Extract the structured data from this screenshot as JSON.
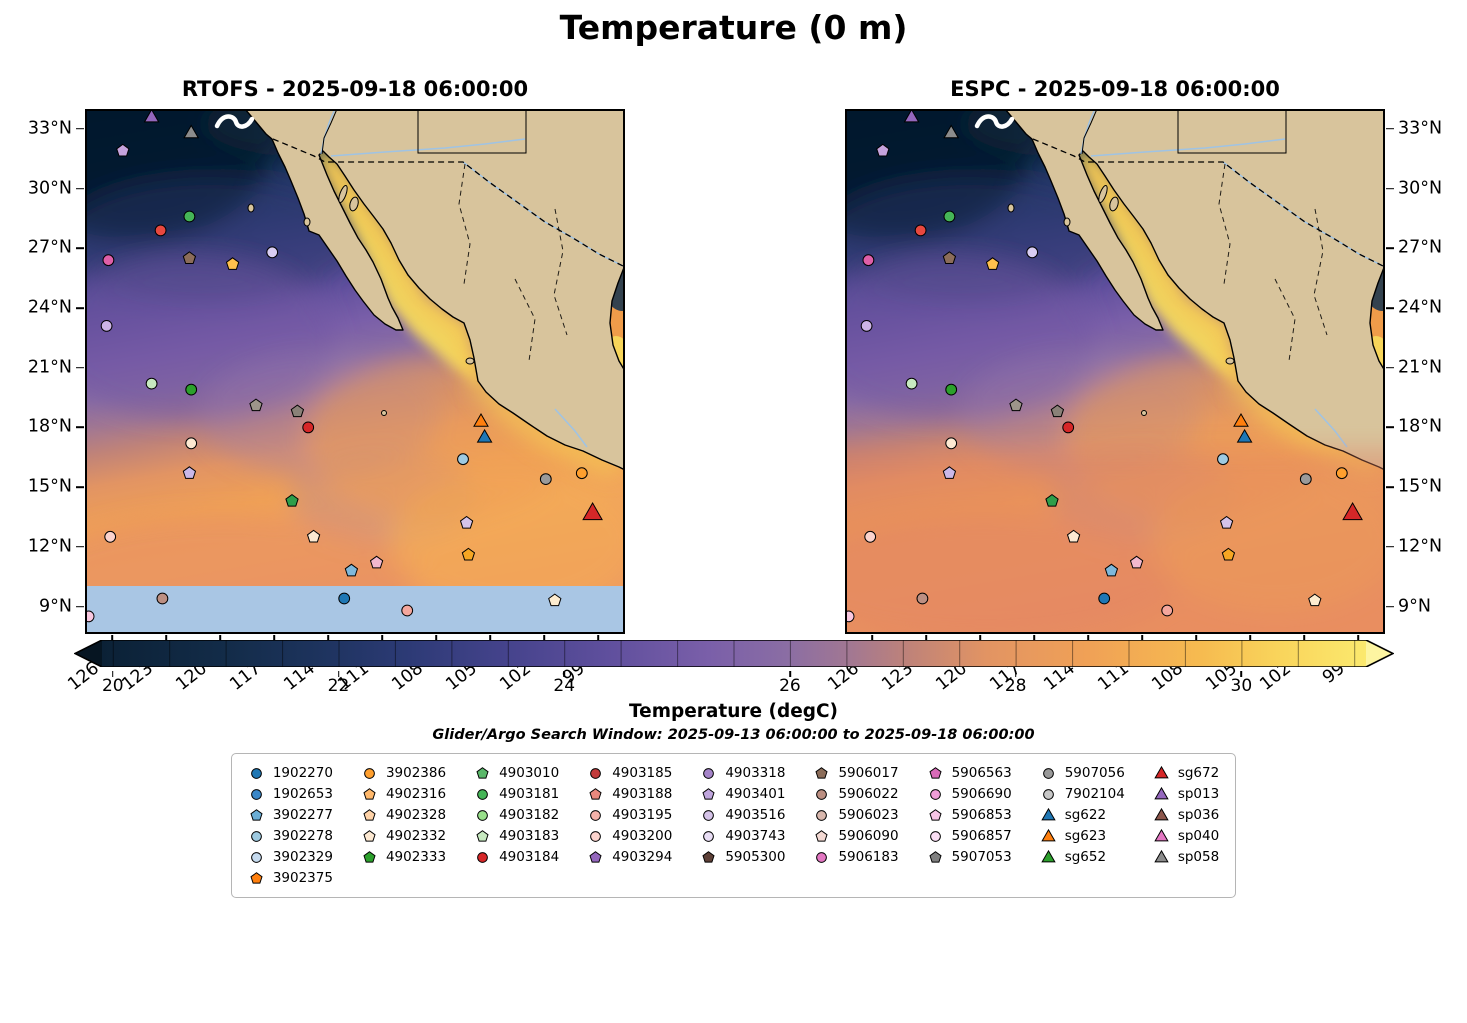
{
  "title": "Temperature (0 m)",
  "subtitle": "Glider/Argo Search Window: 2025-09-13 06:00:00 to 2025-09-18 06:00:00",
  "panels": [
    {
      "id": "rtofs",
      "title": "RTOFS - 2025-09-18 06:00:00",
      "y_axis_side": "left",
      "no_data_band": true,
      "warm_bottom_tint": false
    },
    {
      "id": "espc",
      "title": "ESPC - 2025-09-18 06:00:00",
      "y_axis_side": "right",
      "no_data_band": false,
      "warm_bottom_tint": true
    }
  ],
  "axes": {
    "lat_tick_labels": [
      "33°N",
      "30°N",
      "27°N",
      "24°N",
      "21°N",
      "18°N",
      "15°N",
      "12°N",
      "9°N"
    ],
    "lat_tick_values": [
      33,
      30,
      27,
      24,
      21,
      18,
      15,
      12,
      9
    ],
    "lon_tick_labels": [
      "126°W",
      "123°W",
      "120°W",
      "117°W",
      "114°W",
      "111°W",
      "108°W",
      "105°W",
      "102°W",
      "99°W"
    ],
    "lon_tick_values": [
      -126,
      -123,
      -120,
      -117,
      -114,
      -111,
      -108,
      -105,
      -102,
      -99
    ]
  },
  "colorbar": {
    "label": "Temperature (degC)",
    "ticks": [
      20,
      22,
      24,
      26,
      28,
      30
    ],
    "min": 19.9,
    "max": 31.1,
    "extend_min_color": "#061522",
    "extend_max_color": "#fdf5a1",
    "stops": [
      [
        0,
        "#0b2136"
      ],
      [
        0.1,
        "#132c49"
      ],
      [
        0.17,
        "#1d335d"
      ],
      [
        0.24,
        "#2c3a75"
      ],
      [
        0.32,
        "#45438c"
      ],
      [
        0.4,
        "#5f4f9d"
      ],
      [
        0.48,
        "#7a5fa9"
      ],
      [
        0.54,
        "#8a6da4"
      ],
      [
        0.59,
        "#a17793"
      ],
      [
        0.64,
        "#c08378"
      ],
      [
        0.7,
        "#e29463"
      ],
      [
        0.78,
        "#f0a156"
      ],
      [
        0.87,
        "#f6bb50"
      ],
      [
        0.93,
        "#f9d45b"
      ],
      [
        1,
        "#fbe96e"
      ]
    ]
  },
  "colors": {
    "land": "#d8c49c",
    "coastline": "#000000",
    "no_data_band": "#a9c6e4",
    "espc_warm_tint": "#e07f63",
    "river": "#9fc3e4"
  },
  "legend": {
    "columns": [
      [
        {
          "label": "1902270",
          "shape": "circle",
          "color": "#1f77b4"
        },
        {
          "label": "1902653",
          "shape": "circle",
          "color": "#3a87c8"
        },
        {
          "label": "3902277",
          "shape": "pentagon",
          "color": "#6baed6"
        },
        {
          "label": "3902278",
          "shape": "circle",
          "color": "#9ecae1"
        },
        {
          "label": "3902329",
          "shape": "circle",
          "color": "#c6dbef"
        },
        {
          "label": "3902375",
          "shape": "pentagon",
          "color": "#ff7f0e"
        }
      ],
      [
        {
          "label": "3902386",
          "shape": "circle",
          "color": "#ff9f2e"
        },
        {
          "label": "4902316",
          "shape": "pentagon",
          "color": "#ffb86b"
        },
        {
          "label": "4902328",
          "shape": "pentagon",
          "color": "#ffd3a8"
        },
        {
          "label": "4902332",
          "shape": "pentagon",
          "color": "#fde9d2"
        },
        {
          "label": "4902333",
          "shape": "pentagon",
          "color": "#2ca02c"
        }
      ],
      [
        {
          "label": "4903010",
          "shape": "pentagon",
          "color": "#5ab769"
        },
        {
          "label": "4903181",
          "shape": "circle",
          "color": "#45b557"
        },
        {
          "label": "4903182",
          "shape": "circle",
          "color": "#98df8a"
        },
        {
          "label": "4903183",
          "shape": "pentagon",
          "color": "#c7e9c0"
        },
        {
          "label": "4903184",
          "shape": "circle",
          "color": "#d62728"
        }
      ],
      [
        {
          "label": "4903185",
          "shape": "circle",
          "color": "#c23b3b"
        },
        {
          "label": "4903188",
          "shape": "pentagon",
          "color": "#e9897e"
        },
        {
          "label": "4903195",
          "shape": "circle",
          "color": "#f4b2aa"
        },
        {
          "label": "4903200",
          "shape": "circle",
          "color": "#fbd3cd"
        },
        {
          "label": "4903294",
          "shape": "pentagon",
          "color": "#9467bd"
        }
      ],
      [
        {
          "label": "4903318",
          "shape": "circle",
          "color": "#a584c9"
        },
        {
          "label": "4903401",
          "shape": "pentagon",
          "color": "#c0a6dd"
        },
        {
          "label": "4903516",
          "shape": "circle",
          "color": "#d5c3e8"
        },
        {
          "label": "4903743",
          "shape": "circle",
          "color": "#e9def5"
        },
        {
          "label": "5905300",
          "shape": "pentagon",
          "color": "#5d4037"
        }
      ],
      [
        {
          "label": "5906017",
          "shape": "pentagon",
          "color": "#8c6d5a"
        },
        {
          "label": "5906022",
          "shape": "circle",
          "color": "#bc8f82"
        },
        {
          "label": "5906023",
          "shape": "circle",
          "color": "#d9b8ae"
        },
        {
          "label": "5906090",
          "shape": "pentagon",
          "color": "#f3d9d3"
        },
        {
          "label": "5906183",
          "shape": "circle",
          "color": "#e377c2"
        }
      ],
      [
        {
          "label": "5906563",
          "shape": "pentagon",
          "color": "#d96bb8"
        },
        {
          "label": "5906690",
          "shape": "circle",
          "color": "#ef9ed8"
        },
        {
          "label": "5906853",
          "shape": "pentagon",
          "color": "#f7c6e6"
        },
        {
          "label": "5906857",
          "shape": "circle",
          "color": "#fadef4"
        },
        {
          "label": "5907053",
          "shape": "pentagon",
          "color": "#7f7f7f"
        }
      ],
      [
        {
          "label": "5907056",
          "shape": "circle",
          "color": "#9a9a9a"
        },
        {
          "label": "7902104",
          "shape": "circle",
          "color": "#c7c7c7"
        },
        {
          "label": "sg622",
          "shape": "triangle",
          "color": "#1f77b4"
        },
        {
          "label": "sg623",
          "shape": "triangle",
          "color": "#ff7f0e"
        },
        {
          "label": "sg652",
          "shape": "triangle",
          "color": "#2ca02c"
        }
      ],
      [
        {
          "label": "sg672",
          "shape": "triangle",
          "color": "#d62728"
        },
        {
          "label": "sp013",
          "shape": "triangle",
          "color": "#9467bd"
        },
        {
          "label": "sp036",
          "shape": "triangle",
          "color": "#8c564b"
        },
        {
          "label": "sp040",
          "shape": "triangle",
          "color": "#e377c2"
        },
        {
          "label": "sp058",
          "shape": "triangle",
          "color": "#8c8c8c"
        }
      ]
    ]
  },
  "chart_data": {
    "type": "heatmap",
    "variable": "Temperature",
    "units": "degC",
    "depth": "0 m",
    "panels": [
      {
        "model": "RTOFS",
        "valid_time": "2025-09-18 06:00:00"
      },
      {
        "model": "ESPC",
        "valid_time": "2025-09-18 06:00:00"
      }
    ],
    "region": "Eastern Pacific off Baja California and mainland Mexico, including Gulf of California",
    "lon_range": [
      -127.5,
      -97.5
    ],
    "lat_range": [
      7.6,
      34.0
    ],
    "colorbar_ticks": [
      20,
      22,
      24,
      26,
      28,
      30
    ],
    "colorbar_range_approx": [
      19.9,
      31.1
    ],
    "search_window": "2025-09-13 06:00:00 to 2025-09-18 06:00:00",
    "platforms": [
      {
        "shape": "triangle",
        "color": "#9467bd",
        "lon": -123.8,
        "lat": 33.6
      },
      {
        "shape": "triangle",
        "color": "#8c8c8c",
        "lon": -121.6,
        "lat": 32.8
      },
      {
        "shape": "pentagon",
        "color": "#c5a3dd",
        "lon": -125.4,
        "lat": 31.9
      },
      {
        "shape": "circle",
        "color": "#45b557",
        "lon": -121.7,
        "lat": 28.6
      },
      {
        "shape": "circle",
        "color": "#e8483f",
        "lon": -123.3,
        "lat": 27.9
      },
      {
        "shape": "circle",
        "color": "#e05fa8",
        "lon": -126.2,
        "lat": 26.4
      },
      {
        "shape": "pentagon",
        "color": "#8c6d5a",
        "lon": -121.7,
        "lat": 26.5
      },
      {
        "shape": "pentagon",
        "color": "#ffc04d",
        "lon": -119.3,
        "lat": 26.2
      },
      {
        "shape": "circle",
        "color": "#d9cdf2",
        "lon": -117.1,
        "lat": 26.8
      },
      {
        "shape": "circle",
        "color": "#cdb4e6",
        "lon": -126.3,
        "lat": 23.1
      },
      {
        "shape": "circle",
        "color": "#c7e9c0",
        "lon": -123.8,
        "lat": 20.2
      },
      {
        "shape": "circle",
        "color": "#2ca02c",
        "lon": -121.6,
        "lat": 19.9
      },
      {
        "shape": "pentagon",
        "color": "#9e958a",
        "lon": -118.0,
        "lat": 19.1
      },
      {
        "shape": "pentagon",
        "color": "#8a8178",
        "lon": -115.7,
        "lat": 18.8
      },
      {
        "shape": "circle",
        "color": "#d62728",
        "lon": -115.1,
        "lat": 18.0
      },
      {
        "shape": "circle",
        "color": "#fde9d2",
        "lon": -121.6,
        "lat": 17.2
      },
      {
        "shape": "pentagon",
        "color": "#cbb8e8",
        "lon": -121.7,
        "lat": 15.7
      },
      {
        "shape": "circle",
        "color": "#9ecae1",
        "lon": -106.5,
        "lat": 16.4
      },
      {
        "shape": "triangle",
        "color": "#ff7f0e",
        "lon": -105.5,
        "lat": 18.3
      },
      {
        "shape": "triangle",
        "color": "#1f77b4",
        "lon": -105.3,
        "lat": 17.5
      },
      {
        "shape": "pentagon",
        "color": "#2e9e4a",
        "lon": -116.0,
        "lat": 14.3
      },
      {
        "shape": "circle",
        "color": "#fbd3cd",
        "lon": -126.1,
        "lat": 12.5
      },
      {
        "shape": "pentagon",
        "color": "#d5c3e8",
        "lon": -106.3,
        "lat": 13.2
      },
      {
        "shape": "circle",
        "color": "#ff9f2e",
        "lon": -99.9,
        "lat": 15.7
      },
      {
        "shape": "circle",
        "color": "#9a9a9a",
        "lon": -101.9,
        "lat": 15.4
      },
      {
        "shape": "triangle",
        "color": "#d62728",
        "lon": -99.3,
        "lat": 13.7,
        "size": 1.35
      },
      {
        "shape": "pentagon",
        "color": "#fde9d2",
        "lon": -114.8,
        "lat": 12.5
      },
      {
        "shape": "pentagon",
        "color": "#f5a623",
        "lon": -106.2,
        "lat": 11.6
      },
      {
        "shape": "pentagon",
        "color": "#f2b8ce",
        "lon": -111.3,
        "lat": 11.2
      },
      {
        "shape": "pentagon",
        "color": "#7fb8da",
        "lon": -112.7,
        "lat": 10.8
      },
      {
        "shape": "circle",
        "color": "#bc8f82",
        "lon": -123.2,
        "lat": 9.4
      },
      {
        "shape": "circle",
        "color": "#1f77b4",
        "lon": -113.1,
        "lat": 9.4
      },
      {
        "shape": "circle",
        "color": "#f4a79d",
        "lon": -109.6,
        "lat": 8.8
      },
      {
        "shape": "pentagon",
        "color": "#fdeccf",
        "lon": -101.4,
        "lat": 9.3
      },
      {
        "shape": "circle",
        "color": "#f9c8e0",
        "lon": -127.3,
        "lat": 8.5
      }
    ]
  }
}
